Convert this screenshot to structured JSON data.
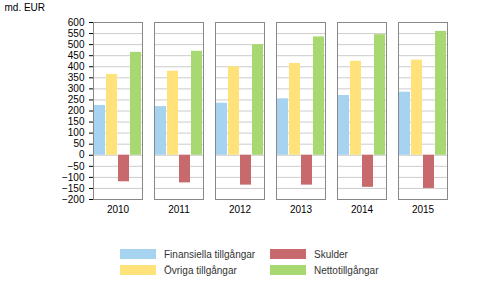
{
  "chart_data": {
    "type": "bar",
    "y_label": "md. EUR",
    "categories": [
      "2010",
      "2011",
      "2012",
      "2013",
      "2014",
      "2015"
    ],
    "series": [
      {
        "name": "Finansiella tillgångar",
        "color": "#a6d3f0",
        "values": [
          225,
          220,
          235,
          255,
          270,
          285
        ]
      },
      {
        "name": "Övriga tillgångar",
        "color": "#ffe27a",
        "values": [
          365,
          380,
          400,
          415,
          425,
          430
        ]
      },
      {
        "name": "Skulder",
        "color": "#c8696d",
        "values": [
          -120,
          -125,
          -135,
          -135,
          -145,
          -150
        ]
      },
      {
        "name": "Nettotillgångar",
        "color": "#a8d872",
        "values": [
          465,
          470,
          500,
          535,
          545,
          560
        ]
      }
    ],
    "ylim": [
      -200,
      600
    ],
    "yticks": [
      -200,
      -150,
      -100,
      -50,
      0,
      50,
      100,
      150,
      200,
      250,
      300,
      350,
      400,
      450,
      500,
      550,
      600
    ],
    "grid": true,
    "legend": "bottom"
  }
}
